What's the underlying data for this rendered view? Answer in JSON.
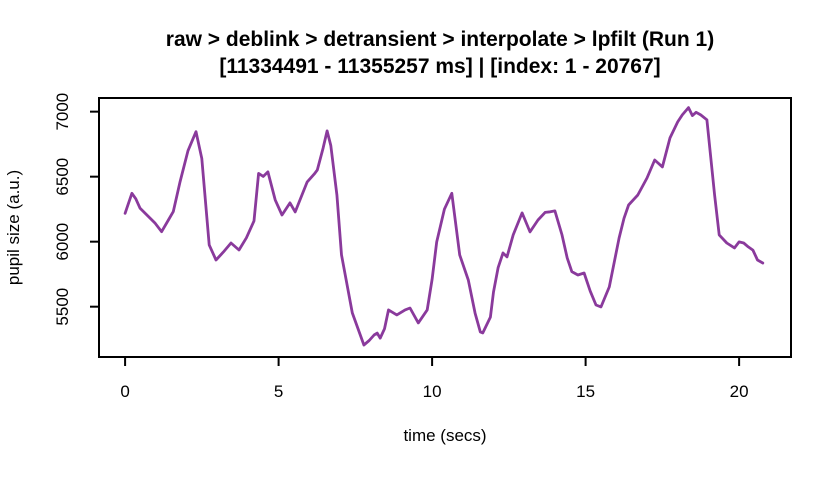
{
  "chart_data": {
    "type": "line",
    "title": "raw > deblink > detransient > interpolate > lpfilt (Run 1)",
    "subtitle": "[11334491 - 11355257 ms] | [index: 1 - 20767]",
    "xlabel": "time (secs)",
    "ylabel": "pupil size (a.u.)",
    "x_ticks": [
      0,
      5,
      10,
      15,
      20
    ],
    "y_ticks": [
      5500,
      6000,
      6500,
      7000
    ],
    "xlim": [
      -0.85,
      21.69
    ],
    "ylim": [
      5113,
      7105
    ],
    "grid": false,
    "legend": "none",
    "line_color": "#8A3A9C",
    "axis_color": "#000000",
    "background_color": "#ffffff",
    "series": [
      {
        "name": "pupil size (a.u.)",
        "points": [
          [
            0.0,
            6218
          ],
          [
            0.22,
            6372
          ],
          [
            0.35,
            6330
          ],
          [
            0.49,
            6257
          ],
          [
            0.71,
            6205
          ],
          [
            0.98,
            6141
          ],
          [
            1.19,
            6077
          ],
          [
            1.41,
            6167
          ],
          [
            1.57,
            6231
          ],
          [
            1.79,
            6462
          ],
          [
            2.05,
            6700
          ],
          [
            2.31,
            6846
          ],
          [
            2.5,
            6640
          ],
          [
            2.74,
            5975
          ],
          [
            2.96,
            5859
          ],
          [
            3.2,
            5920
          ],
          [
            3.45,
            5990
          ],
          [
            3.71,
            5936
          ],
          [
            3.95,
            6030
          ],
          [
            4.2,
            6160
          ],
          [
            4.35,
            6525
          ],
          [
            4.5,
            6502
          ],
          [
            4.65,
            6537
          ],
          [
            4.89,
            6321
          ],
          [
            5.11,
            6205
          ],
          [
            5.37,
            6298
          ],
          [
            5.54,
            6229
          ],
          [
            5.93,
            6460
          ],
          [
            6.16,
            6520
          ],
          [
            6.26,
            6551
          ],
          [
            6.45,
            6720
          ],
          [
            6.58,
            6852
          ],
          [
            6.7,
            6740
          ],
          [
            6.9,
            6360
          ],
          [
            7.05,
            5898
          ],
          [
            7.4,
            5452
          ],
          [
            7.78,
            5205
          ],
          [
            7.95,
            5240
          ],
          [
            8.11,
            5282
          ],
          [
            8.21,
            5297
          ],
          [
            8.31,
            5258
          ],
          [
            8.45,
            5330
          ],
          [
            8.58,
            5475
          ],
          [
            8.85,
            5437
          ],
          [
            9.12,
            5475
          ],
          [
            9.28,
            5490
          ],
          [
            9.55,
            5375
          ],
          [
            9.84,
            5475
          ],
          [
            10.0,
            5710
          ],
          [
            10.15,
            5998
          ],
          [
            10.4,
            6250
          ],
          [
            10.64,
            6372
          ],
          [
            10.9,
            5898
          ],
          [
            11.18,
            5705
          ],
          [
            11.4,
            5450
          ],
          [
            11.57,
            5306
          ],
          [
            11.65,
            5298
          ],
          [
            11.9,
            5420
          ],
          [
            12.0,
            5613
          ],
          [
            12.15,
            5800
          ],
          [
            12.31,
            5913
          ],
          [
            12.44,
            5883
          ],
          [
            12.64,
            6052
          ],
          [
            12.93,
            6221
          ],
          [
            13.19,
            6075
          ],
          [
            13.45,
            6167
          ],
          [
            13.68,
            6225
          ],
          [
            13.85,
            6230
          ],
          [
            14.0,
            6237
          ],
          [
            14.23,
            6052
          ],
          [
            14.4,
            5875
          ],
          [
            14.55,
            5770
          ],
          [
            14.75,
            5744
          ],
          [
            14.95,
            5759
          ],
          [
            15.15,
            5620
          ],
          [
            15.34,
            5513
          ],
          [
            15.5,
            5498
          ],
          [
            15.77,
            5652
          ],
          [
            16.09,
            6028
          ],
          [
            16.25,
            6180
          ],
          [
            16.4,
            6282
          ],
          [
            16.7,
            6359
          ],
          [
            17.0,
            6490
          ],
          [
            17.25,
            6628
          ],
          [
            17.5,
            6575
          ],
          [
            17.75,
            6798
          ],
          [
            18.0,
            6921
          ],
          [
            18.15,
            6975
          ],
          [
            18.35,
            7031
          ],
          [
            18.48,
            6970
          ],
          [
            18.6,
            6995
          ],
          [
            18.75,
            6975
          ],
          [
            18.95,
            6937
          ],
          [
            19.2,
            6359
          ],
          [
            19.35,
            6052
          ],
          [
            19.6,
            5990
          ],
          [
            19.85,
            5952
          ],
          [
            20.0,
            5998
          ],
          [
            20.15,
            5990
          ],
          [
            20.3,
            5960
          ],
          [
            20.45,
            5935
          ],
          [
            20.6,
            5859
          ],
          [
            20.77,
            5836
          ]
        ]
      }
    ]
  }
}
